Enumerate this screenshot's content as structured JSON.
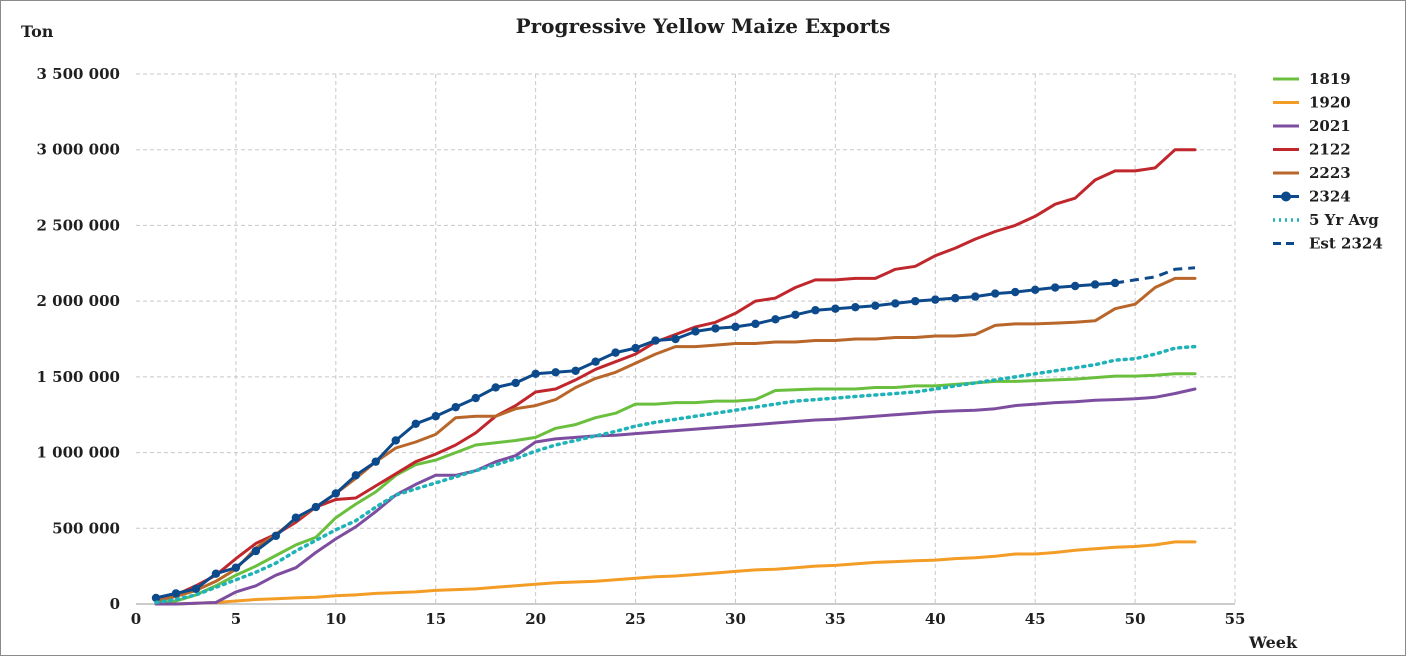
{
  "chart_data": {
    "type": "line",
    "title": "Progressive Yellow Maize Exports",
    "ylabel": "Ton",
    "xlabel": "Week",
    "xlim": [
      0,
      55
    ],
    "ylim": [
      0,
      3500000
    ],
    "xticks": [
      0,
      5,
      10,
      15,
      20,
      25,
      30,
      35,
      40,
      45,
      50,
      55
    ],
    "xtick_labels": [
      "0",
      "5",
      "10",
      "15",
      "20",
      "25",
      "30",
      "35",
      "40",
      "45",
      "50",
      "55"
    ],
    "yticks": [
      0,
      500000,
      1000000,
      1500000,
      2000000,
      2500000,
      3000000,
      3500000
    ],
    "ytick_labels": [
      "0",
      "500 000",
      "1 000 000",
      "1 500 000",
      "2 000 000",
      "2 500 000",
      "3 000 000",
      "3 500 000"
    ],
    "grid": true,
    "legend_position": "right",
    "series": [
      {
        "name": "1819",
        "color": "#6abf3e",
        "style": "solid",
        "x": [
          1,
          2,
          3,
          4,
          5,
          6,
          7,
          8,
          9,
          10,
          11,
          12,
          13,
          14,
          15,
          16,
          17,
          18,
          19,
          20,
          21,
          22,
          23,
          24,
          25,
          26,
          27,
          28,
          29,
          30,
          31,
          32,
          33,
          34,
          35,
          36,
          37,
          38,
          39,
          40,
          41,
          42,
          43,
          44,
          45,
          46,
          47,
          48,
          49,
          50,
          51,
          52,
          53
        ],
        "values": [
          10000,
          20000,
          60000,
          120000,
          190000,
          250000,
          320000,
          390000,
          440000,
          570000,
          660000,
          740000,
          850000,
          920000,
          950000,
          1000000,
          1050000,
          1065000,
          1080000,
          1100000,
          1160000,
          1185000,
          1230000,
          1260000,
          1320000,
          1320000,
          1330000,
          1330000,
          1340000,
          1340000,
          1350000,
          1410000,
          1415000,
          1420000,
          1420000,
          1420000,
          1430000,
          1430000,
          1440000,
          1440000,
          1450000,
          1460000,
          1470000,
          1470000,
          1475000,
          1480000,
          1485000,
          1495000,
          1505000,
          1505000,
          1510000,
          1520000,
          1520000
        ]
      },
      {
        "name": "1920",
        "color": "#f39c26",
        "style": "solid",
        "x": [
          1,
          2,
          3,
          4,
          5,
          6,
          7,
          8,
          9,
          10,
          11,
          12,
          13,
          14,
          15,
          16,
          17,
          18,
          19,
          20,
          21,
          22,
          23,
          24,
          25,
          26,
          27,
          28,
          29,
          30,
          31,
          32,
          33,
          34,
          35,
          36,
          37,
          38,
          39,
          40,
          41,
          42,
          43,
          44,
          45,
          46,
          47,
          48,
          49,
          50,
          51,
          52,
          53
        ],
        "values": [
          0,
          0,
          5000,
          10000,
          20000,
          30000,
          35000,
          40000,
          45000,
          55000,
          60000,
          70000,
          75000,
          80000,
          90000,
          95000,
          100000,
          110000,
          120000,
          130000,
          140000,
          145000,
          150000,
          160000,
          170000,
          180000,
          185000,
          195000,
          205000,
          215000,
          225000,
          230000,
          240000,
          250000,
          255000,
          265000,
          275000,
          280000,
          285000,
          290000,
          300000,
          305000,
          315000,
          330000,
          330000,
          340000,
          355000,
          365000,
          375000,
          380000,
          390000,
          410000,
          410000
        ]
      },
      {
        "name": "2021",
        "color": "#7d4ea0",
        "style": "solid",
        "x": [
          1,
          2,
          3,
          4,
          5,
          6,
          7,
          8,
          9,
          10,
          11,
          12,
          13,
          14,
          15,
          16,
          17,
          18,
          19,
          20,
          21,
          22,
          23,
          24,
          25,
          26,
          27,
          28,
          29,
          30,
          31,
          32,
          33,
          34,
          35,
          36,
          37,
          38,
          39,
          40,
          41,
          42,
          43,
          44,
          45,
          46,
          47,
          48,
          49,
          50,
          51,
          52,
          53
        ],
        "values": [
          0,
          0,
          5000,
          10000,
          80000,
          120000,
          190000,
          240000,
          340000,
          430000,
          510000,
          610000,
          720000,
          790000,
          850000,
          850000,
          880000,
          940000,
          980000,
          1070000,
          1090000,
          1100000,
          1110000,
          1115000,
          1125000,
          1135000,
          1145000,
          1155000,
          1165000,
          1175000,
          1185000,
          1195000,
          1205000,
          1215000,
          1220000,
          1230000,
          1240000,
          1250000,
          1260000,
          1270000,
          1275000,
          1280000,
          1290000,
          1310000,
          1320000,
          1330000,
          1335000,
          1345000,
          1350000,
          1355000,
          1365000,
          1390000,
          1420000
        ]
      },
      {
        "name": "2122",
        "color": "#c0272d",
        "style": "solid",
        "x": [
          1,
          2,
          3,
          4,
          5,
          6,
          7,
          8,
          9,
          10,
          11,
          12,
          13,
          14,
          15,
          16,
          17,
          18,
          19,
          20,
          21,
          22,
          23,
          24,
          25,
          26,
          27,
          28,
          29,
          30,
          31,
          32,
          33,
          34,
          35,
          36,
          37,
          38,
          39,
          40,
          41,
          42,
          43,
          44,
          45,
          46,
          47,
          48,
          49,
          50,
          51,
          52,
          53
        ],
        "values": [
          20000,
          60000,
          120000,
          190000,
          300000,
          400000,
          460000,
          540000,
          640000,
          690000,
          700000,
          780000,
          860000,
          940000,
          990000,
          1050000,
          1130000,
          1240000,
          1310000,
          1400000,
          1420000,
          1480000,
          1550000,
          1600000,
          1650000,
          1730000,
          1780000,
          1830000,
          1860000,
          1920000,
          2000000,
          2020000,
          2090000,
          2140000,
          2140000,
          2150000,
          2150000,
          2210000,
          2230000,
          2300000,
          2350000,
          2410000,
          2460000,
          2500000,
          2560000,
          2640000,
          2680000,
          2800000,
          2860000,
          2860000,
          2880000,
          3000000,
          3000000
        ]
      },
      {
        "name": "2223",
        "color": "#b8662a",
        "style": "solid",
        "x": [
          1,
          2,
          3,
          4,
          5,
          6,
          7,
          8,
          9,
          10,
          11,
          12,
          13,
          14,
          15,
          16,
          17,
          18,
          19,
          20,
          21,
          22,
          23,
          24,
          25,
          26,
          27,
          28,
          29,
          30,
          31,
          32,
          33,
          34,
          35,
          36,
          37,
          38,
          39,
          40,
          41,
          42,
          43,
          44,
          45,
          46,
          47,
          48,
          49,
          50,
          51,
          52,
          53
        ],
        "values": [
          20000,
          50000,
          90000,
          150000,
          230000,
          370000,
          460000,
          560000,
          640000,
          730000,
          830000,
          940000,
          1030000,
          1070000,
          1120000,
          1230000,
          1240000,
          1240000,
          1290000,
          1310000,
          1350000,
          1430000,
          1490000,
          1530000,
          1590000,
          1650000,
          1700000,
          1700000,
          1710000,
          1720000,
          1720000,
          1730000,
          1730000,
          1740000,
          1740000,
          1750000,
          1750000,
          1760000,
          1760000,
          1770000,
          1770000,
          1780000,
          1840000,
          1850000,
          1850000,
          1855000,
          1860000,
          1870000,
          1950000,
          1980000,
          2090000,
          2150000,
          2150000
        ]
      },
      {
        "name": "2324",
        "color": "#0d4a8b",
        "style": "solid-markers",
        "x": [
          1,
          2,
          3,
          4,
          5,
          6,
          7,
          8,
          9,
          10,
          11,
          12,
          13,
          14,
          15,
          16,
          17,
          18,
          19,
          20,
          21,
          22,
          23,
          24,
          25,
          26,
          27,
          28,
          29,
          30,
          31,
          32,
          33,
          34,
          35,
          36,
          37,
          38,
          39,
          40,
          41,
          42,
          43,
          44,
          45,
          46,
          47,
          48,
          49
        ],
        "values": [
          40000,
          70000,
          100000,
          200000,
          240000,
          350000,
          450000,
          570000,
          640000,
          730000,
          850000,
          940000,
          1080000,
          1190000,
          1240000,
          1300000,
          1360000,
          1430000,
          1460000,
          1520000,
          1530000,
          1540000,
          1600000,
          1660000,
          1690000,
          1740000,
          1750000,
          1800000,
          1820000,
          1830000,
          1850000,
          1880000,
          1910000,
          1940000,
          1950000,
          1960000,
          1970000,
          1985000,
          2000000,
          2010000,
          2020000,
          2030000,
          2050000,
          2060000,
          2075000,
          2090000,
          2100000,
          2110000,
          2120000
        ]
      },
      {
        "name": "5 Yr Avg",
        "color": "#1fb2b8",
        "style": "dotted",
        "x": [
          1,
          2,
          3,
          4,
          5,
          6,
          7,
          8,
          9,
          10,
          11,
          12,
          13,
          14,
          15,
          16,
          17,
          18,
          19,
          20,
          21,
          22,
          23,
          24,
          25,
          26,
          27,
          28,
          29,
          30,
          31,
          32,
          33,
          34,
          35,
          36,
          37,
          38,
          39,
          40,
          41,
          42,
          43,
          44,
          45,
          46,
          47,
          48,
          49,
          50,
          51,
          52,
          53
        ],
        "values": [
          10000,
          30000,
          60000,
          110000,
          160000,
          210000,
          270000,
          350000,
          420000,
          490000,
          550000,
          640000,
          720000,
          760000,
          800000,
          840000,
          880000,
          920000,
          960000,
          1010000,
          1050000,
          1080000,
          1110000,
          1140000,
          1175000,
          1200000,
          1220000,
          1240000,
          1260000,
          1280000,
          1300000,
          1320000,
          1340000,
          1350000,
          1360000,
          1370000,
          1380000,
          1390000,
          1400000,
          1420000,
          1440000,
          1460000,
          1480000,
          1500000,
          1520000,
          1540000,
          1560000,
          1580000,
          1610000,
          1620000,
          1650000,
          1690000,
          1700000
        ]
      },
      {
        "name": "Est 2324",
        "color": "#0d4a8b",
        "style": "dashed",
        "x": [
          49,
          50,
          51,
          52,
          53
        ],
        "values": [
          2120000,
          2140000,
          2160000,
          2210000,
          2220000
        ]
      }
    ]
  }
}
